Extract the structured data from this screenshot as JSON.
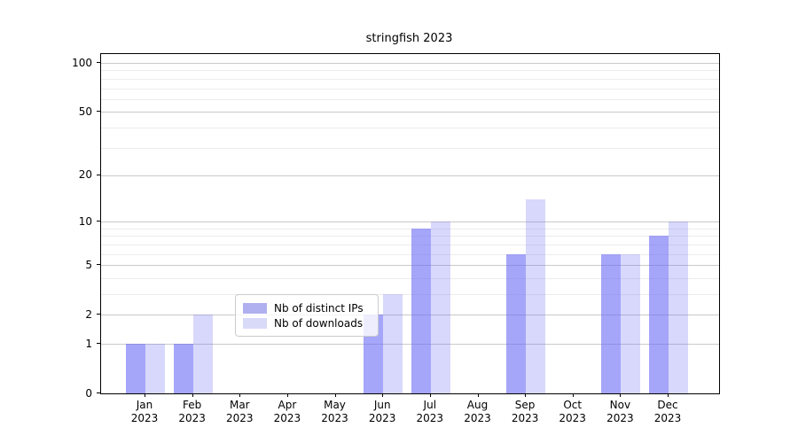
{
  "title": "stringfish 2023",
  "chart_data": {
    "type": "bar",
    "title": "stringfish 2023",
    "categories": [
      "Jan 2023",
      "Feb 2023",
      "Mar 2023",
      "Apr 2023",
      "May 2023",
      "Jun 2023",
      "Jul 2023",
      "Aug 2023",
      "Sep 2023",
      "Oct 2023",
      "Nov 2023",
      "Dec 2023"
    ],
    "series": [
      {
        "name": "Nb of distinct IPs",
        "values": [
          1,
          1,
          0,
          0,
          0,
          2,
          9,
          0,
          6,
          0,
          6,
          8
        ],
        "color": "#6e6ef5",
        "alpha": 0.62,
        "legend_swatch_color": "#b0b0f0"
      },
      {
        "name": "Nb of downloads",
        "values": [
          1,
          2,
          0,
          0,
          0,
          3,
          10,
          0,
          14,
          0,
          6,
          10
        ],
        "color": "#6e6ef5",
        "alpha": 0.27,
        "legend_swatch_color": "#d9d9f8"
      }
    ],
    "yscale": "log1p",
    "ylim": [
      0,
      110
    ],
    "y_major_ticks": [
      0,
      1,
      2,
      5,
      10,
      20,
      50,
      100
    ],
    "y_minor_ticks": [
      3,
      4,
      6,
      7,
      8,
      9,
      30,
      40,
      60,
      70,
      80,
      90
    ],
    "xlabel": "",
    "ylabel": "",
    "grid": "on",
    "legend_position": "lower center"
  },
  "colors": {
    "bar_base": "#6e6ef5",
    "gridline_major": "#c9c9c9",
    "gridline_minor": "#ececec",
    "spine": "#000000",
    "legend_border": "#cccccc"
  }
}
